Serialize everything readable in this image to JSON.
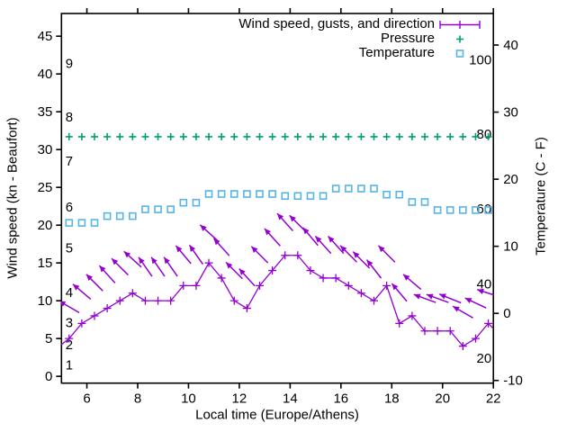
{
  "chart_data": {
    "type": "line",
    "title": "",
    "xlabel": "Local time (Europe/Athens)",
    "ylabel_left": "Wind speed (kn - Beaufort)",
    "ylabel_right": "Temperature (C - F)",
    "x_range": [
      5,
      22
    ],
    "x_ticks": [
      6,
      8,
      10,
      12,
      14,
      16,
      18,
      20,
      22
    ],
    "left_axis_range": [
      -0.9,
      48.0
    ],
    "left_ticks": [
      0,
      5,
      10,
      15,
      20,
      25,
      30,
      35,
      40,
      45
    ],
    "right_axis_range_c": [
      -10.4,
      44.7
    ],
    "right_ticks_c": [
      -10,
      0,
      10,
      20,
      30,
      40
    ],
    "beaufort_inner_labels": [
      {
        "label": "1",
        "kn": 1.5
      },
      {
        "label": "2",
        "kn": 4.2
      },
      {
        "label": "3",
        "kn": 7.1
      },
      {
        "label": "4",
        "kn": 11.1
      },
      {
        "label": "5",
        "kn": 17.0
      },
      {
        "label": "6",
        "kn": 22.4
      },
      {
        "label": "7",
        "kn": 28.5
      },
      {
        "label": "8",
        "kn": 34.3
      },
      {
        "label": "9",
        "kn": 41.4
      }
    ],
    "fahrenheit_inner_labels": [
      {
        "label": "20",
        "c": -6.7
      },
      {
        "label": "40",
        "c": 4.4
      },
      {
        "label": "60",
        "c": 15.6
      },
      {
        "label": "80",
        "c": 26.7
      },
      {
        "label": "100",
        "c": 37.8
      }
    ],
    "legend": [
      {
        "label": "Wind speed, gusts, and direction",
        "marker": "errorbar",
        "color": "#9400d3"
      },
      {
        "label": "Pressure",
        "marker": "plus",
        "color": "#009e73"
      },
      {
        "label": "Temperature",
        "marker": "square-open",
        "color": "#56b4e9"
      }
    ],
    "x_hours": [
      5.3,
      5.8,
      6.3,
      6.8,
      7.3,
      7.8,
      8.3,
      8.8,
      9.3,
      9.8,
      10.3,
      10.8,
      11.3,
      11.8,
      12.3,
      12.8,
      13.3,
      13.8,
      14.3,
      14.8,
      15.3,
      15.8,
      16.3,
      16.8,
      17.3,
      17.8,
      18.3,
      18.8,
      19.3,
      19.8,
      20.3,
      20.8,
      21.3,
      21.8
    ],
    "wind_speed_kn": [
      5,
      7,
      8,
      9,
      10,
      11,
      10,
      10,
      10,
      12,
      12,
      15,
      13,
      10,
      9,
      12,
      14,
      16,
      16,
      14,
      13,
      13,
      12,
      11,
      10,
      12,
      7,
      8,
      6,
      6,
      6,
      4,
      5,
      7
    ],
    "wind_gust_kn": [
      9.2,
      11.2,
      12.4,
      13.5,
      14.5,
      15.5,
      14.5,
      14.5,
      14.5,
      16.1,
      16.1,
      19.0,
      17.1,
      14.0,
      13.1,
      16.1,
      18.4,
      20.4,
      20.2,
      18.5,
      17.4,
      17.4,
      16.2,
      15.4,
      14.2,
      16.2,
      11.1,
      12.5,
      10.3,
      10.3,
      10.3,
      8.5,
      9.7,
      11.0
    ],
    "wind_arrow_angle_deg": [
      30,
      40,
      45,
      48,
      45,
      42,
      55,
      55,
      55,
      50,
      55,
      42,
      48,
      45,
      48,
      45,
      48,
      48,
      45,
      50,
      48,
      48,
      45,
      45,
      52,
      45,
      50,
      40,
      20,
      20,
      22,
      30,
      25,
      18
    ],
    "temperature_c": [
      13.5,
      13.5,
      13.5,
      14.5,
      14.5,
      14.5,
      15.5,
      15.5,
      15.5,
      16.5,
      16.5,
      17.8,
      17.8,
      17.8,
      17.8,
      17.8,
      17.8,
      17.5,
      17.5,
      17.5,
      17.5,
      18.6,
      18.6,
      18.6,
      18.6,
      17.7,
      17.7,
      16.6,
      16.6,
      15.4,
      15.4,
      15.4,
      15.4,
      15.4
    ],
    "pressure_left_axis_value": 31.7,
    "wind_edge_points": {
      "lead": {
        "t": 5.0,
        "kn": 4.2
      },
      "trail": {
        "t": 22.0,
        "kn": 6.3
      }
    }
  },
  "colors": {
    "wind": "#9400d3",
    "pressure": "#009e73",
    "temperature": "#56b4e9",
    "axis": "#000000",
    "background": "#ffffff"
  }
}
